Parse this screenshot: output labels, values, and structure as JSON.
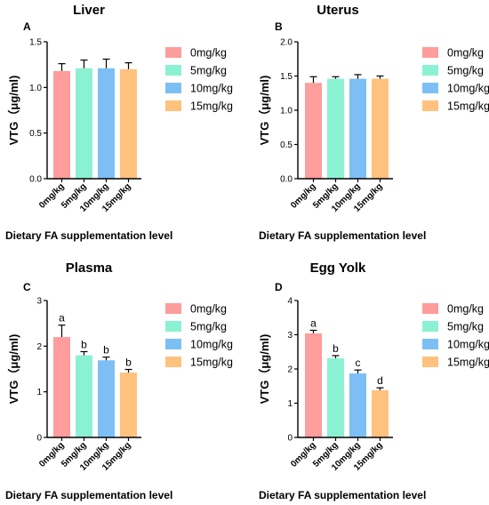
{
  "chart_data": [
    {
      "type": "bar",
      "title": "Liver",
      "panel_letter": "A",
      "ylabel": "VTG（μg/ml)",
      "xlabel": "Dietary FA supplementation level",
      "categories": [
        "0mg/kg",
        "5mg/kg",
        "10mg/kg",
        "15mg/kg"
      ],
      "values": [
        1.18,
        1.21,
        1.21,
        1.2
      ],
      "errors": [
        0.08,
        0.09,
        0.1,
        0.07
      ],
      "significance": [],
      "ylim": [
        0,
        1.5
      ],
      "yticks": [
        "0.0",
        "0.5",
        "1.0",
        "1.5"
      ],
      "ytick_values": [
        0,
        0.5,
        1.0,
        1.5
      ]
    },
    {
      "type": "bar",
      "title": "Uterus",
      "panel_letter": "B",
      "ylabel": "VTG（μg/ml)",
      "xlabel": "Dietary FA supplementation level",
      "categories": [
        "0mg/kg",
        "5mg/kg",
        "10mg/kg",
        "15mg/kg"
      ],
      "values": [
        1.4,
        1.46,
        1.46,
        1.46
      ],
      "errors": [
        0.09,
        0.03,
        0.06,
        0.04
      ],
      "significance": [],
      "ylim": [
        0,
        2.0
      ],
      "yticks": [
        "0.0",
        "0.5",
        "1.0",
        "1.5",
        "2.0"
      ],
      "ytick_values": [
        0,
        0.5,
        1.0,
        1.5,
        2.0
      ]
    },
    {
      "type": "bar",
      "title": "Plasma",
      "panel_letter": "C",
      "ylabel": "VTG（μg/ml)",
      "xlabel": "Dietary FA supplementation level",
      "categories": [
        "0mg/kg",
        "5mg/kg",
        "10mg/kg",
        "15mg/kg"
      ],
      "values": [
        2.2,
        1.8,
        1.69,
        1.42
      ],
      "errors": [
        0.26,
        0.08,
        0.07,
        0.07
      ],
      "significance": [
        "a",
        "b",
        "b",
        "b"
      ],
      "ylim": [
        0,
        3
      ],
      "yticks": [
        "0",
        "1",
        "2",
        "3"
      ],
      "ytick_values": [
        0,
        1,
        2,
        3
      ]
    },
    {
      "type": "bar",
      "title": "Egg Yolk",
      "panel_letter": "D",
      "ylabel": "VTG（μg/ml)",
      "xlabel": "Dietary FA supplementation level",
      "categories": [
        "0mg/kg",
        "5mg/kg",
        "10mg/kg",
        "15mg/kg"
      ],
      "values": [
        3.04,
        2.31,
        1.87,
        1.38
      ],
      "errors": [
        0.09,
        0.08,
        0.1,
        0.07
      ],
      "significance": [
        "a",
        "b",
        "c",
        "d"
      ],
      "ylim": [
        0,
        4
      ],
      "yticks": [
        "0",
        "1",
        "2",
        "3",
        "4"
      ],
      "ytick_values": [
        0,
        1,
        2,
        3,
        4
      ]
    }
  ],
  "legend": {
    "placement": "right",
    "items": [
      {
        "label": "0mg/kg",
        "color": "#FF9C9C"
      },
      {
        "label": "5mg/kg",
        "color": "#8AF2D3"
      },
      {
        "label": "10mg/kg",
        "color": "#7DBFF5"
      },
      {
        "label": "15mg/kg",
        "color": "#FFC27E"
      }
    ]
  }
}
